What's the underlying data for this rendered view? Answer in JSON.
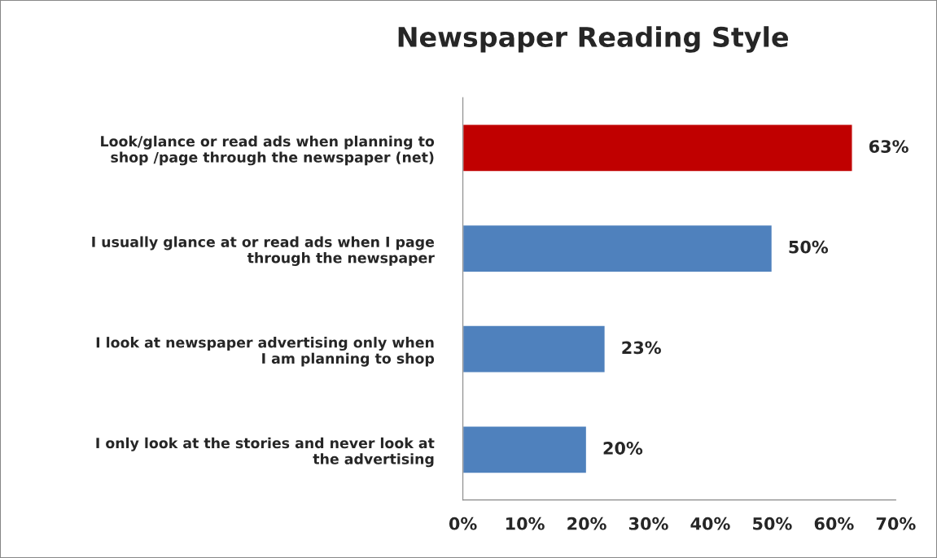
{
  "chart_data": {
    "type": "bar",
    "orientation": "horizontal",
    "title": "Newspaper Reading Style",
    "categories": [
      "Look/glance or read ads when planning to\nshop /page through the newspaper (net)",
      "I usually glance at or read ads when I page\nthrough the newspaper",
      "I look at newspaper advertising only when\nI am planning to shop",
      "I only look at the stories and never look at\nthe advertising"
    ],
    "values": [
      63,
      50,
      23,
      20
    ],
    "colors": [
      "#c00000",
      "#4f81bd",
      "#4f81bd",
      "#4f81bd"
    ],
    "value_labels": [
      "63%",
      "50%",
      "23%",
      "20%"
    ],
    "xlim": [
      0,
      70
    ],
    "xticks": [
      {
        "value": 0,
        "label": "0%"
      },
      {
        "value": 10,
        "label": "10%"
      },
      {
        "value": 20,
        "label": "20%"
      },
      {
        "value": 30,
        "label": "30%"
      },
      {
        "value": 40,
        "label": "40%"
      },
      {
        "value": 50,
        "label": "50%"
      },
      {
        "value": 60,
        "label": "60%"
      },
      {
        "value": 70,
        "label": "70%"
      }
    ],
    "grid": false,
    "legend": false
  }
}
